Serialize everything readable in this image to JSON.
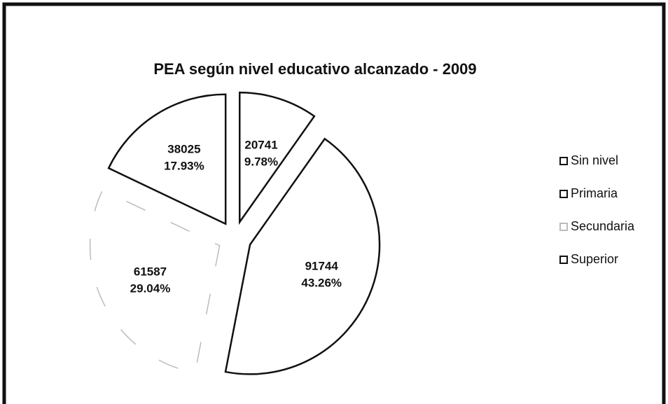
{
  "chart_data": {
    "type": "pie",
    "title": "PEA según nivel educativo alcanzado - 2009",
    "categories": [
      "Sin nivel",
      "Primaria",
      "Secundaria",
      "Superior"
    ],
    "values": [
      20741,
      91744,
      61587,
      38025
    ],
    "percent_labels": [
      "9.78%",
      "43.26%",
      "29.04%",
      "17.93%"
    ],
    "colors": [
      "#ffffff",
      "#ffffff",
      "#ffffff",
      "#ffffff"
    ],
    "legend": "right"
  }
}
